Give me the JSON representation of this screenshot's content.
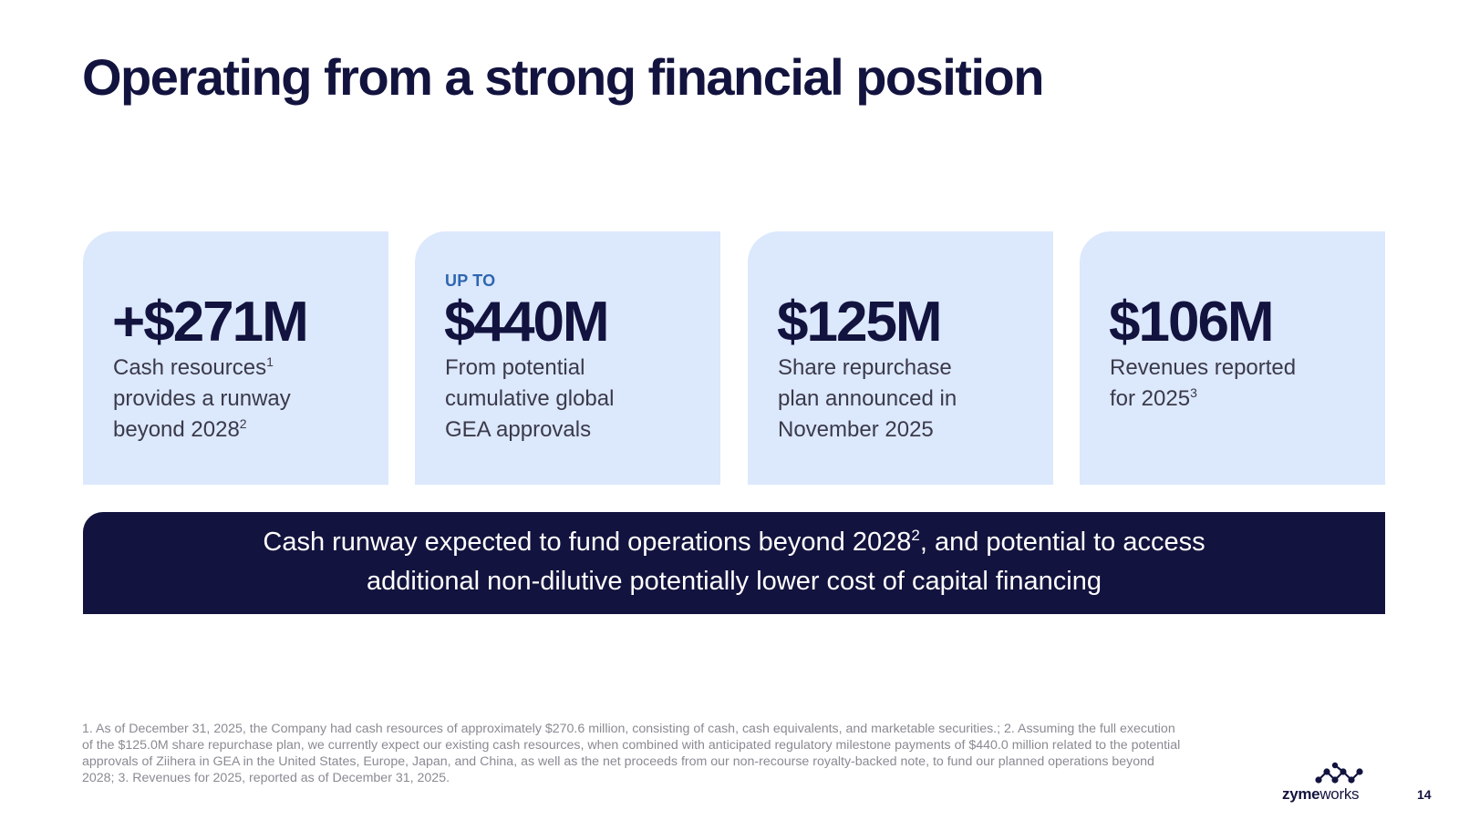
{
  "slide": {
    "title": "Operating from a strong financial position",
    "page_number": "14"
  },
  "cards": [
    {
      "prefix": "",
      "value": "+$271M",
      "desc_lines": [
        "Cash resources",
        "provides a runway",
        "beyond 2028"
      ],
      "desc_sups": [
        "1",
        "",
        "2"
      ]
    },
    {
      "prefix": "UP TO",
      "value": "$440M",
      "desc_lines": [
        "From potential",
        "cumulative global",
        "GEA approvals"
      ],
      "desc_sups": [
        "",
        "",
        ""
      ]
    },
    {
      "prefix": "",
      "value": "$125M",
      "desc_lines": [
        "Share repurchase",
        "plan announced in",
        "November 2025"
      ],
      "desc_sups": [
        "",
        "",
        ""
      ]
    },
    {
      "prefix": "",
      "value": "$106M",
      "desc_lines": [
        "Revenues reported",
        "for 2025"
      ],
      "desc_sups": [
        "",
        "3"
      ]
    }
  ],
  "banner": {
    "line1_before_sup": "Cash runway expected to fund operations beyond 2028",
    "line1_sup": "2",
    "line1_after_sup": ", and potential to access",
    "line2": "additional non-dilutive potentially lower cost of capital financing"
  },
  "footnote": "1. As of December 31, 2025, the Company had cash resources of approximately $270.6 million, consisting of cash, cash equivalents, and marketable securities.; 2. Assuming the full execution of the $125.0M share repurchase plan, we currently expect our existing cash resources, when combined with anticipated regulatory milestone payments of $440.0 million related to the potential approvals of Ziihera in GEA in the United States, Europe, Japan, and China, as well as the net proceeds from our non-recourse royalty-backed note, to fund our planned operations beyond 2028; 3. Revenues for 2025, reported as of December 31, 2025.",
  "logo": {
    "bold_part": "zyme",
    "regular_part": "works",
    "icon": "molecule-dots-icon"
  },
  "colors": {
    "navy": "#13133f",
    "card_bg": "#dce8fc",
    "accent_blue": "#2e66b0"
  }
}
